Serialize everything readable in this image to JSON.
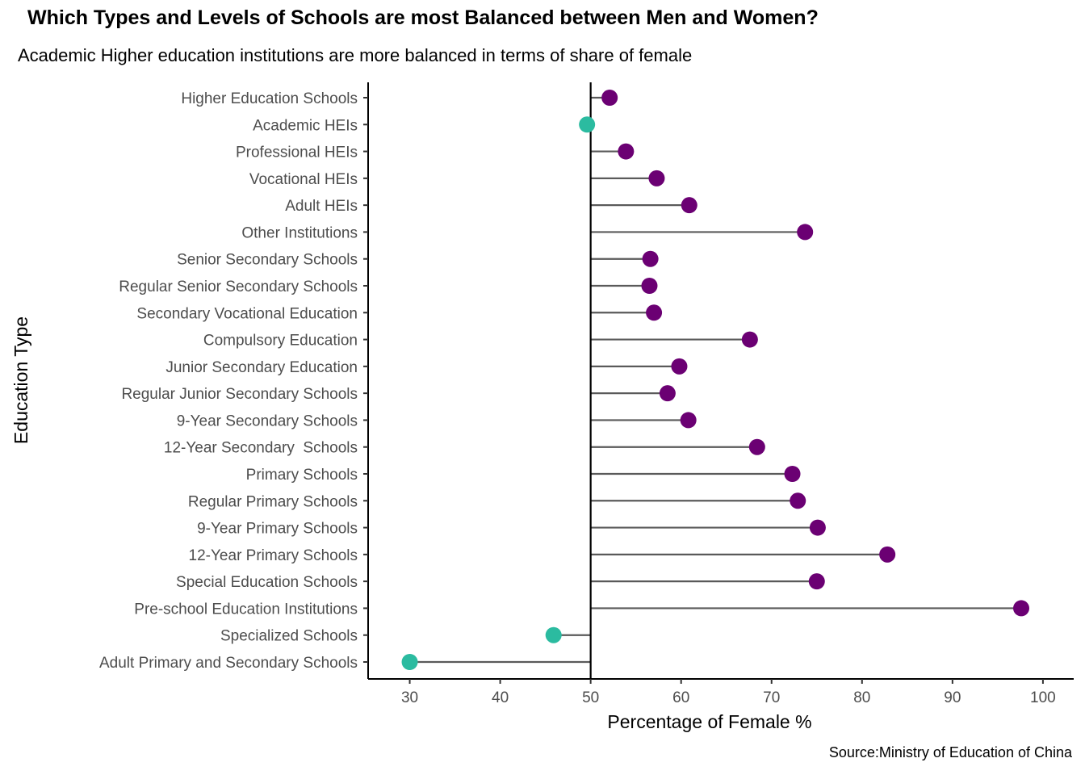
{
  "chart_data": {
    "type": "lollipop",
    "title": "Which Types and Levels of Schools are most Balanced between Men and Women?",
    "subtitle": "Academic Higher education institutions are more balanced in terms of share of female",
    "caption": "Source:Ministry of Education of China",
    "xlabel": "Percentage of Female %",
    "ylabel": "Education Type",
    "xlim": [
      25.4,
      103.4
    ],
    "x_ticks": [
      30,
      40,
      50,
      60,
      70,
      80,
      90,
      100
    ],
    "reference_line": 50,
    "grid": false,
    "colors": {
      "above": "#6B0073",
      "below": "#2BBBA0",
      "segment": "#5a5a5a",
      "reference": "#000000"
    },
    "categories": [
      "Higher Education Schools",
      "Academic HEIs",
      "Professional HEIs",
      "Vocational HEIs",
      "Adult HEIs",
      "Other Institutions",
      "Senior Secondary Schools",
      "Regular Senior Secondary Schools",
      "Secondary Vocational Education",
      "Compulsory Education",
      "Junior Secondary Education",
      "Regular Junior Secondary Schools",
      "9-Year Secondary Schools",
      "12-Year Secondary  Schools",
      "Primary Schools",
      "Regular Primary Schools",
      "9-Year Primary Schools",
      "12-Year Primary Schools",
      "Special Education Schools",
      "Pre-school Education Institutions",
      "Specialized Schools",
      "Adult Primary and Secondary Schools"
    ],
    "values": [
      52.1,
      49.6,
      53.9,
      57.3,
      60.9,
      73.7,
      56.6,
      56.5,
      57.0,
      67.6,
      59.8,
      58.5,
      60.8,
      68.4,
      72.3,
      72.9,
      75.1,
      82.8,
      75.0,
      97.6,
      45.9,
      30.0
    ]
  }
}
